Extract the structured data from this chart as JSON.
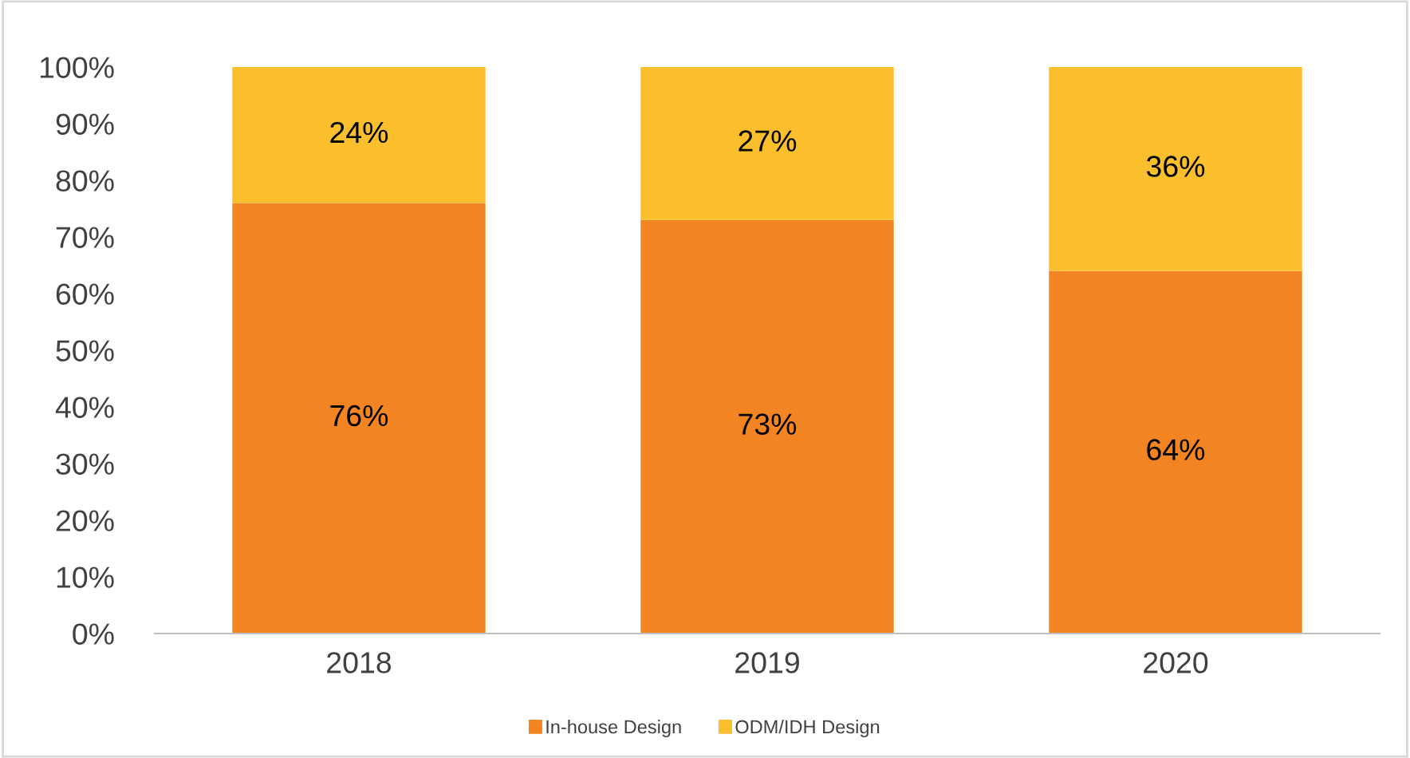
{
  "chart_data": {
    "type": "bar",
    "stacked": true,
    "categories": [
      "2018",
      "2019",
      "2020"
    ],
    "series": [
      {
        "name": "In-house Design",
        "color": "#f28522",
        "values": [
          76,
          73,
          64
        ],
        "value_labels": [
          "76%",
          "73%",
          "64%"
        ]
      },
      {
        "name": "ODM/IDH Design",
        "color": "#fbbe2c",
        "values": [
          24,
          27,
          36
        ],
        "value_labels": [
          "24%",
          "27%",
          "36%"
        ]
      }
    ],
    "ylim": [
      0,
      100
    ],
    "yticks": [
      {
        "value": 0,
        "label": "0%"
      },
      {
        "value": 10,
        "label": "10%"
      },
      {
        "value": 20,
        "label": "20%"
      },
      {
        "value": 30,
        "label": "30%"
      },
      {
        "value": 40,
        "label": "40%"
      },
      {
        "value": 50,
        "label": "50%"
      },
      {
        "value": 60,
        "label": "60%"
      },
      {
        "value": 70,
        "label": "70%"
      },
      {
        "value": 80,
        "label": "80%"
      },
      {
        "value": 90,
        "label": "90%"
      },
      {
        "value": 100,
        "label": "100%"
      }
    ],
    "grid": false,
    "legend": "bottom"
  }
}
